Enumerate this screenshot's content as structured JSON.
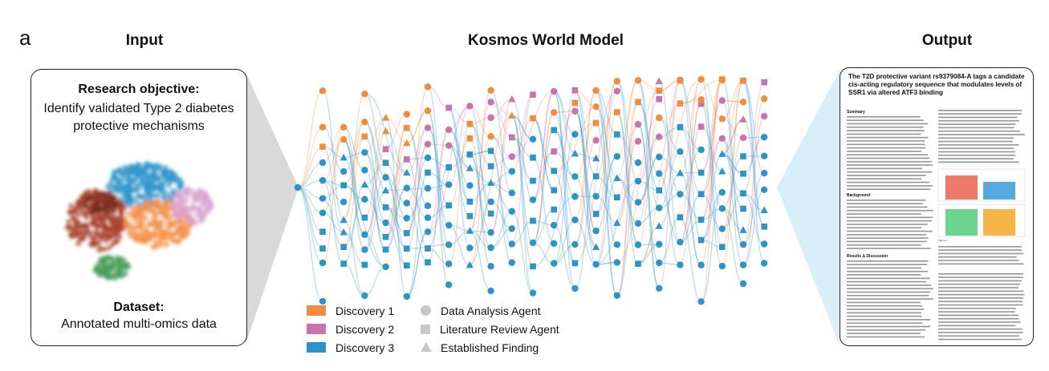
{
  "panel_label": "a",
  "columns": {
    "input": "Input",
    "model": "Kosmos World Model",
    "output": "Output"
  },
  "input": {
    "objective_heading": "Research objective:",
    "objective_text": "Identify validated Type 2 diabetes protective mechanisms",
    "dataset_heading": "Dataset:",
    "dataset_text": "Annotated multi-omics data"
  },
  "output": {
    "paper_title": "The T2D protective variant rs9379084-A tags a candidate cis-acting regulatory sequence that modulates levels of SSR1 via altered ATF3 binding",
    "sections": [
      "Summary",
      "Background",
      "Results & Discussion"
    ],
    "figure_caption_label": "Figure 1:"
  },
  "legend": {
    "colors": [
      {
        "label": "Discovery 1",
        "color": "#f28c3c"
      },
      {
        "label": "Discovery 2",
        "color": "#c973ad"
      },
      {
        "label": "Discovery 3",
        "color": "#2e93c6"
      }
    ],
    "shapes": [
      {
        "label": "Data Analysis Agent",
        "shape": "circle"
      },
      {
        "label": "Literature Review Agent",
        "shape": "square"
      },
      {
        "label": "Established Finding",
        "shape": "triangle"
      }
    ]
  },
  "colors": {
    "orange": "#f28c3c",
    "pink": "#c973ad",
    "blue": "#2e93c6",
    "callout": "#d8eef8",
    "cluster_gray": "#d9d9d9"
  }
}
